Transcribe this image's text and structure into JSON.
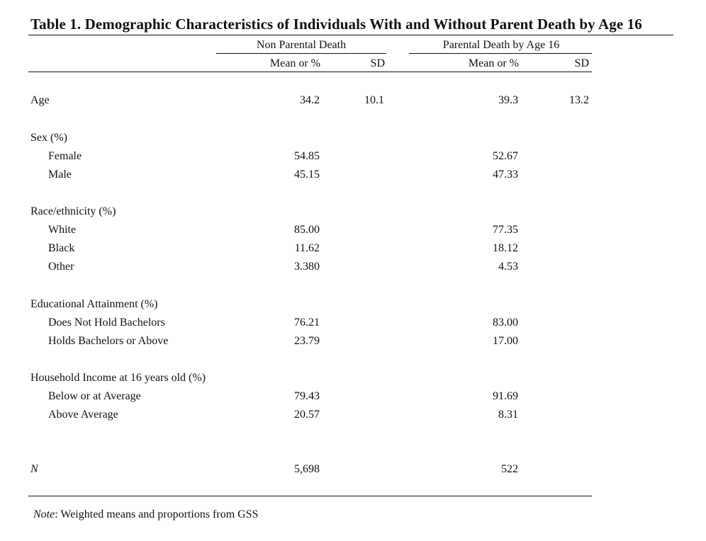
{
  "table": {
    "title": "Table 1. Demographic Characteristics of Individuals With and Without Parent Death by Age 16",
    "group_headers": {
      "non_parental": "Non Parental Death",
      "parental": "Parental Death by Age 16"
    },
    "col_headers": {
      "mean1": "Mean or %",
      "sd1": "SD",
      "mean2": "Mean or %",
      "sd2": "SD"
    },
    "rows": {
      "age": {
        "label": "Age",
        "m1": "34.2",
        "sd1": "10.1",
        "m2": "39.3",
        "sd2": "13.2"
      },
      "sex_header": {
        "label": "Sex (%)"
      },
      "female": {
        "label": "Female",
        "m1": "54.85",
        "m2": "52.67"
      },
      "male": {
        "label": "Male",
        "m1": "45.15",
        "m2": "47.33"
      },
      "race_header": {
        "label": "Race/ethnicity (%)"
      },
      "white": {
        "label": "White",
        "m1": "85.00",
        "m2": "77.35"
      },
      "black": {
        "label": "Black",
        "m1": "11.62",
        "m2": "18.12"
      },
      "other": {
        "label": "Other",
        "m1": "3.380",
        "m2": "4.53"
      },
      "edu_header": {
        "label": "Educational Attainment (%)"
      },
      "no_bach": {
        "label": "Does Not Hold Bachelors",
        "m1": "76.21",
        "m2": "83.00"
      },
      "bach": {
        "label": "Holds Bachelors or Above",
        "m1": "23.79",
        "m2": "17.00"
      },
      "inc_header": {
        "label": "Household Income at 16 years old (%)"
      },
      "below": {
        "label": "Below or at Average",
        "m1": "79.43",
        "m2": "91.69"
      },
      "above": {
        "label": "Above Average",
        "m1": "20.57",
        "m2": "8.31"
      },
      "n": {
        "label": "N",
        "m1": "5,698",
        "m2": "522"
      }
    },
    "note": {
      "label": "Note",
      "text": ": Weighted means and proportions from GSS"
    }
  }
}
